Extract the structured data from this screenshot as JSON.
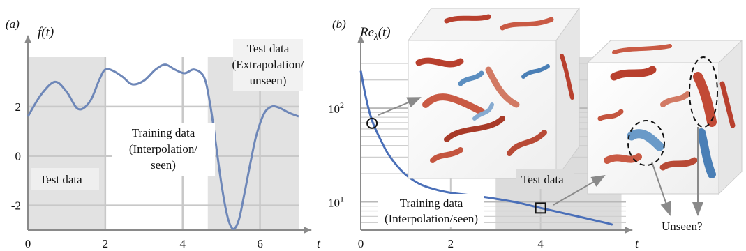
{
  "panel_a": {
    "label": "(a)",
    "ylabel": "f(t)",
    "xlabel": "t",
    "xticks": [
      "0",
      "2",
      "4",
      "6"
    ],
    "yticks": [
      "-2",
      "0",
      "2"
    ],
    "annotations": {
      "test_left": "Test data",
      "training": [
        "Training data",
        "(Interpolation/",
        "seen)"
      ],
      "test_right": [
        "Test data",
        "(Extrapolation/",
        "unseen)"
      ]
    }
  },
  "panel_b": {
    "label": "(b)",
    "ylabel_main": "Re",
    "ylabel_sub": "λ",
    "ylabel_tail": "(t)",
    "xlabel": "t",
    "xticks": [
      "0",
      "2",
      "4"
    ],
    "yticks": [
      {
        "base": "10",
        "exp": "2"
      },
      {
        "base": "10",
        "exp": "1"
      }
    ],
    "annotations": {
      "test": "Test data",
      "training": [
        "Training data",
        "(Interpolation/seen)"
      ],
      "unseen": "Unseen?"
    }
  },
  "chart_data": [
    {
      "type": "line",
      "panel": "a",
      "xlabel": "t",
      "ylabel": "f(t)",
      "xlim": [
        0,
        7
      ],
      "ylim": [
        -3,
        4
      ],
      "grid": true,
      "regions": [
        {
          "name": "Test data",
          "x": [
            0,
            2
          ]
        },
        {
          "name": "Training data (Interpolation/seen)",
          "x": [
            2,
            4.65
          ]
        },
        {
          "name": "Test data (Extrapolation/unseen)",
          "x": [
            4.65,
            7
          ]
        }
      ],
      "x": [
        0,
        0.35,
        0.7,
        1.0,
        1.3,
        1.6,
        1.85,
        2.0,
        2.2,
        2.45,
        2.7,
        3.0,
        3.3,
        3.55,
        3.8,
        4.05,
        4.3,
        4.55,
        4.7,
        4.85,
        5.0,
        5.15,
        5.3,
        5.45,
        5.6,
        5.75,
        5.9,
        6.1,
        6.3,
        6.5,
        6.75,
        7.0
      ],
      "y": [
        1.6,
        2.5,
        3.0,
        2.6,
        1.9,
        2.2,
        3.1,
        3.5,
        3.45,
        3.2,
        2.9,
        3.05,
        3.5,
        3.7,
        3.5,
        3.35,
        3.5,
        3.2,
        2.2,
        0.6,
        -1.1,
        -2.4,
        -2.95,
        -2.6,
        -1.5,
        -0.3,
        0.8,
        1.7,
        2.0,
        1.95,
        1.75,
        1.6
      ]
    },
    {
      "type": "line",
      "panel": "b",
      "xlabel": "t",
      "ylabel": "Re_λ(t)",
      "log_y": true,
      "xlim": [
        0,
        5.9
      ],
      "ylim": [
        5,
        350
      ],
      "grid": true,
      "regions": [
        {
          "name": "Training data (Interpolation/seen)",
          "x": [
            0,
            3
          ]
        },
        {
          "name": "Test data",
          "x": [
            3,
            5.8
          ]
        }
      ],
      "markers": [
        {
          "shape": "circle",
          "x": 0.25,
          "y": 69
        },
        {
          "shape": "square",
          "x": 4.0,
          "y": 8.6
        }
      ],
      "x": [
        0,
        0.1,
        0.2,
        0.3,
        0.45,
        0.6,
        0.8,
        1.0,
        1.3,
        1.6,
        2.0,
        2.5,
        3.0,
        3.5,
        4.0,
        4.5,
        5.0,
        5.5,
        5.6
      ],
      "y": [
        250,
        140,
        88,
        64,
        45,
        33,
        24.5,
        19.5,
        15.6,
        13.8,
        12.5,
        11.7,
        10.8,
        9.8,
        8.6,
        7.6,
        6.7,
        5.9,
        5.7
      ]
    }
  ]
}
